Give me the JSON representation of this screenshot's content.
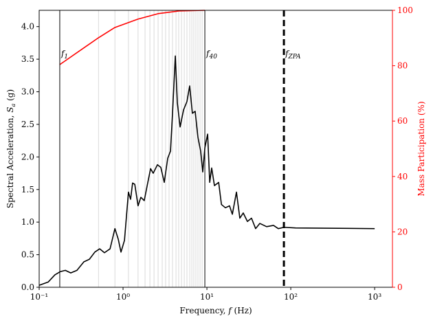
{
  "chart_data": {
    "type": "line",
    "xlabel": {
      "text": "Frequency, ",
      "symbol": "f",
      "unit": " (Hz)"
    },
    "ylabel": {
      "text": "Spectral Acceleration, ",
      "symbol": "S",
      "subscript": "a",
      "unit": " (g)"
    },
    "y2label": "Mass Participation (%)",
    "xscale": "log",
    "xlim": [
      0.1,
      1630
    ],
    "xticks": [
      {
        "value": 0.1,
        "label": "10⁻¹"
      },
      {
        "value": 1,
        "label": "10⁰"
      },
      {
        "value": 10,
        "label": "10¹"
      },
      {
        "value": 100,
        "label": "10²"
      },
      {
        "value": 1000,
        "label": "10³"
      }
    ],
    "ylim": [
      0,
      4.25
    ],
    "yticks": [
      {
        "value": 0,
        "label": "0.0"
      },
      0.5,
      {
        "value": 1,
        "label": "1.0"
      },
      1.5,
      {
        "value": 2,
        "label": "2.0"
      },
      2.5,
      {
        "value": 3,
        "label": "3.0"
      },
      3.5,
      {
        "value": 4,
        "label": "4.0"
      }
    ],
    "y2lim": [
      0,
      100
    ],
    "y2ticks": [
      0,
      20,
      40,
      60,
      80,
      100
    ],
    "y2color": "#ff0000",
    "series": [
      {
        "color": "#000000",
        "x": [
          0.1,
          0.128,
          0.154,
          0.179,
          0.205,
          0.238,
          0.282,
          0.341,
          0.397,
          0.461,
          0.526,
          0.6,
          0.7,
          0.8,
          0.876,
          0.945,
          1.04,
          1.16,
          1.23,
          1.3,
          1.38,
          1.51,
          1.63,
          1.79,
          1.94,
          2.13,
          2.29,
          2.57,
          2.82,
          3.1,
          3.41,
          3.68,
          3.89,
          4.2,
          4.44,
          4.79,
          5.26,
          5.78,
          6.23,
          6.71,
          7.24,
          7.82,
          8.42,
          8.92,
          9.45,
          10.2,
          10.8,
          11.4,
          12.3,
          13.8,
          14.9,
          16.6,
          18.6,
          20.1,
          22.5,
          24.7,
          27.1,
          30.4,
          34.0,
          38.1,
          42.7,
          51.5,
          62.2,
          71.0,
          82.8,
          114,
          1000
        ],
        "values": [
          0.03,
          0.08,
          0.19,
          0.24,
          0.26,
          0.22,
          0.26,
          0.39,
          0.43,
          0.54,
          0.59,
          0.53,
          0.59,
          0.9,
          0.74,
          0.54,
          0.72,
          1.46,
          1.35,
          1.6,
          1.58,
          1.25,
          1.38,
          1.33,
          1.56,
          1.82,
          1.75,
          1.88,
          1.84,
          1.61,
          1.98,
          2.09,
          2.67,
          3.55,
          2.83,
          2.46,
          2.72,
          2.85,
          3.09,
          2.67,
          2.7,
          2.3,
          2.09,
          1.77,
          2.14,
          2.35,
          1.61,
          1.83,
          1.56,
          1.61,
          1.27,
          1.22,
          1.25,
          1.12,
          1.46,
          1.06,
          1.14,
          1.01,
          1.06,
          0.9,
          0.98,
          0.93,
          0.95,
          0.9,
          0.92,
          0.91,
          0.9
        ]
      },
      {
        "color": "#ff0000",
        "axis": "y2",
        "x": [
          0.176,
          0.51,
          0.8,
          1.5,
          2.62,
          4.61,
          9.45
        ],
        "values": [
          80.4,
          90.1,
          93.8,
          96.8,
          98.8,
          99.75,
          100
        ]
      }
    ],
    "vlines": [
      {
        "x": 0.176,
        "symbol": "f",
        "subscript": "1",
        "style": "solid"
      },
      {
        "x": 9.45,
        "symbol": "f",
        "subscript": "40",
        "style": "solid"
      },
      {
        "x": 82.8,
        "symbol": "f",
        "subscript": "ZPA",
        "style": "dashed"
      }
    ],
    "mode_lines": [
      0.51,
      0.8,
      1.16,
      1.51,
      1.83,
      2.09,
      2.34,
      2.62,
      2.93,
      3.22,
      3.54,
      3.89,
      4.28,
      4.61,
      4.98,
      5.37,
      5.78,
      6.24,
      6.61,
      6.98,
      7.39,
      7.82,
      8.28,
      8.77
    ]
  }
}
